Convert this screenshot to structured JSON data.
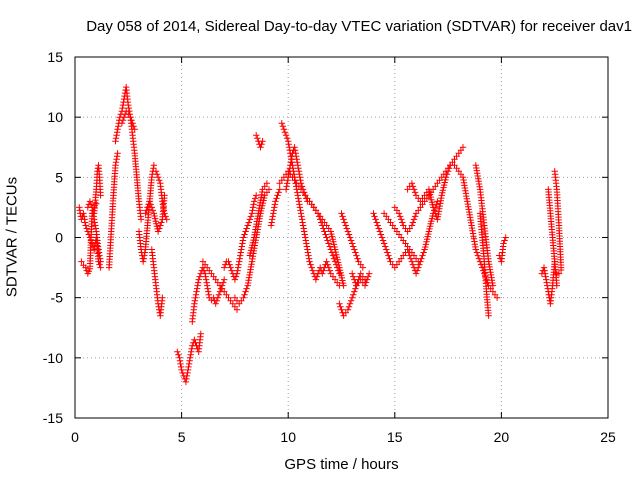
{
  "chart_data": {
    "type": "scatter",
    "title": "Day 058 of 2014, Sidereal Day-to-day VTEC variation (SDTVAR) for receiver dav1",
    "xlabel": "GPS time / hours",
    "ylabel": "SDTVAR / TECUs",
    "xlim": [
      0,
      25
    ],
    "ylim": [
      -15,
      15
    ],
    "xticks": [
      0,
      5,
      10,
      15,
      20,
      25
    ],
    "yticks": [
      -15,
      -10,
      -5,
      0,
      5,
      10,
      15
    ],
    "xtick_labels": [
      "0",
      "5",
      "10",
      "15",
      "20",
      "25"
    ],
    "ytick_labels": [
      "-15",
      "-10",
      "-5",
      "0",
      "5",
      "10",
      "15"
    ],
    "grid": true,
    "marker": "+",
    "color": "#ff0000",
    "tracks": [
      {
        "name": "arc-1",
        "x": [
          0.2,
          0.3,
          0.4,
          0.5,
          0.6,
          0.7,
          0.8,
          0.9,
          1.0,
          1.1,
          1.2
        ],
        "y": [
          2.5,
          1.5,
          2.0,
          1.0,
          0.5,
          0.0,
          -0.5,
          -1.0,
          0.0,
          -2.0,
          -2.5
        ]
      },
      {
        "name": "arc-2",
        "x": [
          0.3,
          0.4,
          0.5,
          0.6,
          0.7,
          0.8,
          0.9,
          1.0
        ],
        "y": [
          -2.0,
          -2.3,
          -2.5,
          -3.0,
          -2.6,
          2.0,
          2.5,
          2.8
        ]
      },
      {
        "name": "arc-3",
        "x": [
          0.6,
          0.7,
          0.8,
          0.9,
          1.0,
          1.1,
          1.2
        ],
        "y": [
          2.5,
          3.0,
          2.5,
          1.5,
          0.5,
          -1.0,
          -2.0
        ]
      },
      {
        "name": "arc-4",
        "x": [
          0.9,
          1.0,
          1.05,
          1.1,
          1.15,
          1.2
        ],
        "y": [
          2.0,
          4.0,
          5.5,
          6.0,
          5.0,
          3.5
        ]
      },
      {
        "name": "arc-5",
        "x": [
          1.6,
          1.7,
          1.8,
          1.9,
          2.0
        ],
        "y": [
          -2.5,
          0.5,
          3.5,
          6.0,
          7.0
        ]
      },
      {
        "name": "arc-6",
        "x": [
          1.9,
          2.0,
          2.1,
          2.2,
          2.3,
          2.4,
          2.5,
          2.6,
          2.7,
          2.8,
          2.9,
          3.0,
          3.1
        ],
        "y": [
          8.0,
          9.0,
          10.0,
          10.5,
          11.5,
          12.5,
          11.0,
          10.0,
          8.5,
          7.0,
          5.0,
          3.0,
          1.5
        ]
      },
      {
        "name": "arc-7",
        "x": [
          2.2,
          2.4,
          2.6,
          2.8
        ],
        "y": [
          9.5,
          10.5,
          10.0,
          9.0
        ]
      },
      {
        "name": "arc-8",
        "x": [
          3.0,
          3.1,
          3.2,
          3.3,
          3.4,
          3.5,
          3.6,
          3.7
        ],
        "y": [
          0.5,
          -1.0,
          -2.0,
          -1.0,
          1.0,
          3.0,
          5.0,
          6.0
        ]
      },
      {
        "name": "arc-9",
        "x": [
          3.3,
          3.5,
          3.7,
          3.9,
          4.1,
          4.2
        ],
        "y": [
          2.0,
          3.0,
          2.0,
          0.5,
          1.5,
          3.5
        ]
      },
      {
        "name": "arc-10",
        "x": [
          3.6,
          3.7,
          3.8,
          3.9,
          4.0,
          4.1
        ],
        "y": [
          -1.0,
          -2.5,
          -4.0,
          -5.5,
          -6.5,
          -5.0
        ]
      },
      {
        "name": "arc-11",
        "x": [
          3.8,
          3.9,
          4.0,
          4.1,
          4.2,
          4.3
        ],
        "y": [
          5.5,
          5.0,
          4.5,
          3.0,
          2.0,
          1.5
        ]
      },
      {
        "name": "arc-12",
        "x": [
          4.8,
          4.9,
          5.0,
          5.1,
          5.2,
          5.3,
          5.4,
          5.5,
          5.6,
          5.7,
          5.8,
          5.9
        ],
        "y": [
          -9.5,
          -10.0,
          -11.0,
          -11.5,
          -12.0,
          -11.0,
          -10.0,
          -9.0,
          -8.5,
          -9.0,
          -9.5,
          -8.0
        ]
      },
      {
        "name": "arc-13",
        "x": [
          5.5,
          5.6,
          5.7,
          5.8,
          5.9,
          6.0,
          6.1,
          6.2,
          6.3,
          6.4,
          6.5,
          6.6,
          6.7,
          6.8,
          6.9,
          7.0
        ],
        "y": [
          -7.0,
          -5.5,
          -4.5,
          -3.5,
          -3.0,
          -2.5,
          -3.0,
          -4.0,
          -5.0,
          -5.2,
          -5.0,
          -5.5,
          -5.0,
          -4.5,
          -4.0,
          -3.5
        ]
      },
      {
        "name": "arc-14",
        "x": [
          6.0,
          6.2,
          6.4,
          6.6,
          6.8,
          7.0,
          7.2,
          7.4,
          7.6
        ],
        "y": [
          -2.0,
          -2.5,
          -3.0,
          -3.5,
          -4.0,
          -4.5,
          -5.0,
          -5.5,
          -6.0
        ]
      },
      {
        "name": "arc-15",
        "x": [
          7.0,
          7.1,
          7.2,
          7.3,
          7.4,
          7.5,
          7.6,
          7.7,
          7.8,
          7.9,
          8.0,
          8.1,
          8.2,
          8.3,
          8.4,
          8.5
        ],
        "y": [
          -2.5,
          -2.0,
          -2.0,
          -2.5,
          -3.0,
          -3.5,
          -3.0,
          -2.0,
          -1.0,
          0.0,
          0.5,
          1.0,
          1.5,
          2.0,
          3.0,
          3.5
        ]
      },
      {
        "name": "arc-16",
        "x": [
          7.5,
          7.7,
          7.9,
          8.1,
          8.3,
          8.5,
          8.7,
          8.9,
          9.1
        ],
        "y": [
          -5.0,
          -5.5,
          -5.0,
          -4.0,
          -2.0,
          0.0,
          2.0,
          3.5,
          4.0
        ]
      },
      {
        "name": "arc-17",
        "x": [
          8.2,
          8.4,
          8.6,
          8.8,
          9.0
        ],
        "y": [
          -1.5,
          0.0,
          2.0,
          4.0,
          4.5
        ]
      },
      {
        "name": "arc-18",
        "x": [
          8.5,
          8.6,
          8.7,
          8.8
        ],
        "y": [
          8.5,
          8.0,
          7.5,
          8.0
        ]
      },
      {
        "name": "arc-19",
        "x": [
          9.7,
          9.8,
          9.9,
          10.0,
          10.1,
          10.2,
          10.3,
          10.4,
          10.5,
          10.6,
          10.7,
          10.8,
          10.9,
          11.0,
          11.1,
          11.2,
          11.3,
          11.4,
          11.5,
          11.6,
          11.7,
          11.8,
          11.9,
          12.0,
          12.2,
          12.4
        ],
        "y": [
          9.5,
          9.0,
          8.5,
          8.0,
          7.0,
          6.0,
          5.0,
          4.0,
          3.0,
          2.0,
          1.0,
          0.0,
          -1.0,
          -2.0,
          -2.5,
          -3.0,
          -3.5,
          -3.0,
          -2.5,
          -3.0,
          -2.5,
          -2.0,
          -2.5,
          -3.0,
          -3.5,
          -4.0
        ]
      },
      {
        "name": "arc-20",
        "x": [
          9.9,
          10.0,
          10.1,
          10.2,
          10.3,
          10.4,
          10.5,
          10.6,
          10.7,
          10.8,
          10.9,
          11.0,
          11.2,
          11.4,
          11.6,
          11.8,
          12.0,
          12.2,
          12.4
        ],
        "y": [
          4.0,
          5.0,
          6.0,
          7.0,
          7.5,
          6.5,
          5.5,
          4.5,
          4.0,
          3.5,
          3.0,
          3.0,
          2.5,
          2.0,
          1.0,
          0.0,
          -1.0,
          -2.0,
          -3.0
        ]
      },
      {
        "name": "arc-21",
        "x": [
          9.6,
          9.8,
          10.0,
          10.2,
          10.4,
          10.6,
          10.8,
          11.0,
          11.2,
          11.4,
          11.6,
          11.8,
          12.0,
          12.2,
          12.4,
          12.6
        ],
        "y": [
          4.5,
          5.0,
          5.5,
          5.0,
          4.5,
          4.0,
          3.5,
          3.0,
          2.5,
          2.0,
          1.5,
          1.0,
          0.5,
          -1.0,
          -2.5,
          -4.0
        ]
      },
      {
        "name": "arc-22",
        "x": [
          9.2,
          9.3,
          9.4,
          9.5,
          9.6
        ],
        "y": [
          1.0,
          2.0,
          3.0,
          3.5,
          4.0
        ]
      },
      {
        "name": "arc-23",
        "x": [
          12.4,
          12.6,
          12.8,
          13.0,
          13.2,
          13.4,
          13.6
        ],
        "y": [
          -5.5,
          -6.5,
          -6.0,
          -5.0,
          -4.0,
          -3.0,
          -3.5
        ]
      },
      {
        "name": "arc-24",
        "x": [
          12.5,
          12.7,
          12.9,
          13.1,
          13.3,
          13.5
        ],
        "y": [
          2.0,
          1.0,
          0.0,
          -1.0,
          -2.0,
          -2.5
        ]
      },
      {
        "name": "arc-25",
        "x": [
          13.0,
          13.2,
          13.4,
          13.6,
          13.8
        ],
        "y": [
          -3.0,
          -4.0,
          -3.5,
          -4.0,
          -3.0
        ]
      },
      {
        "name": "arc-26",
        "x": [
          14.0,
          14.2,
          14.4,
          14.6,
          14.8,
          15.0,
          15.2,
          15.4,
          15.6,
          15.8,
          16.0,
          16.2,
          16.4,
          16.6,
          16.8,
          17.0
        ],
        "y": [
          2.0,
          1.0,
          0.0,
          -1.0,
          -2.0,
          -2.5,
          -2.0,
          -1.5,
          -1.0,
          -2.0,
          -3.0,
          -2.0,
          -1.0,
          0.5,
          2.0,
          3.0
        ]
      },
      {
        "name": "arc-27",
        "x": [
          14.5,
          14.7,
          14.9,
          15.1,
          15.3,
          15.5,
          15.7,
          15.9,
          16.1
        ],
        "y": [
          2.0,
          1.5,
          1.0,
          0.5,
          0.0,
          -0.5,
          -1.0,
          -1.5,
          -2.0
        ]
      },
      {
        "name": "arc-28",
        "x": [
          15.0,
          15.2,
          15.4,
          15.6,
          15.8,
          16.0,
          16.2,
          16.4,
          16.6,
          16.8,
          17.0,
          17.2,
          17.4,
          17.6,
          17.8,
          18.0,
          18.2
        ],
        "y": [
          2.5,
          2.0,
          1.0,
          0.5,
          1.0,
          2.0,
          2.5,
          3.0,
          3.5,
          4.0,
          4.5,
          5.0,
          5.5,
          6.0,
          6.5,
          7.0,
          7.5
        ]
      },
      {
        "name": "arc-29",
        "x": [
          15.6,
          15.8,
          16.0,
          16.2,
          16.4,
          16.6,
          16.8,
          17.0,
          17.2,
          17.4,
          17.6
        ],
        "y": [
          4.0,
          4.5,
          3.5,
          3.0,
          3.5,
          4.0,
          2.5,
          1.5,
          3.5,
          5.0,
          6.0
        ]
      },
      {
        "name": "arc-30",
        "x": [
          17.8,
          18.0,
          18.2,
          18.4,
          18.6,
          18.8,
          19.0,
          19.2,
          19.4,
          19.6,
          19.8
        ],
        "y": [
          6.0,
          5.5,
          5.0,
          3.0,
          1.0,
          -1.0,
          -2.0,
          -3.0,
          -4.0,
          -4.5,
          -5.0
        ]
      },
      {
        "name": "arc-31",
        "x": [
          18.8,
          19.0,
          19.2,
          19.4,
          19.6
        ],
        "y": [
          6.0,
          4.0,
          1.0,
          -2.0,
          -4.0
        ]
      },
      {
        "name": "arc-32",
        "x": [
          19.0,
          19.1,
          19.2,
          19.3,
          19.4
        ],
        "y": [
          2.0,
          0.0,
          -2.0,
          -4.5,
          -6.5
        ]
      },
      {
        "name": "arc-33",
        "x": [
          19.9,
          20.0,
          20.1,
          20.2
        ],
        "y": [
          -1.5,
          -2.0,
          -0.5,
          0.0
        ]
      },
      {
        "name": "arc-34",
        "x": [
          21.9,
          22.0,
          22.1,
          22.2,
          22.3,
          22.4,
          22.5
        ],
        "y": [
          -3.0,
          -2.5,
          -3.5,
          -4.5,
          -5.5,
          -4.0,
          -2.0
        ]
      },
      {
        "name": "arc-35",
        "x": [
          22.2,
          22.3,
          22.4,
          22.5,
          22.6
        ],
        "y": [
          4.0,
          2.0,
          0.0,
          -2.0,
          -4.0
        ]
      },
      {
        "name": "arc-36",
        "x": [
          22.5,
          22.6,
          22.7,
          22.8
        ],
        "y": [
          5.5,
          4.0,
          1.0,
          -2.5
        ]
      },
      {
        "name": "arc-37",
        "x": [
          22.6,
          22.7,
          22.8
        ],
        "y": [
          -3.0,
          -3.0,
          -2.7
        ]
      }
    ]
  }
}
